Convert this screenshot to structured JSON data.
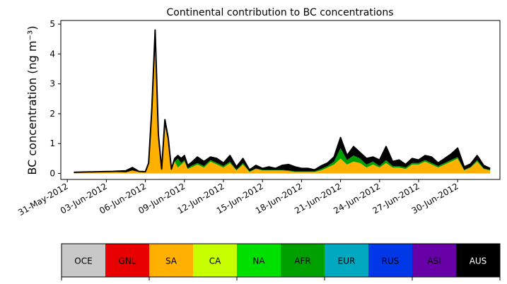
{
  "chart_data": {
    "type": "area",
    "title": "Continental contribution to BC concentrations",
    "xlabel": "",
    "ylabel": "BC concentration (ng m⁻³)",
    "ylim": [
      -0.2,
      5.12
    ],
    "xlim": [
      "2012-05-30T12:00",
      "2012-07-03T06:00"
    ],
    "grid": false,
    "stacked": true,
    "x_ticks": [
      "31-May-2012",
      "03-Jun-2012",
      "06-Jun-2012",
      "09-Jun-2012",
      "12-Jun-2012",
      "15-Jun-2012",
      "18-Jun-2012",
      "21-Jun-2012",
      "24-Jun-2012",
      "27-Jun-2012",
      "30-Jun-2012"
    ],
    "y_ticks": [
      0,
      1,
      2,
      3,
      4,
      5
    ],
    "x": [
      "2012-05-31T12:00",
      "2012-06-01T12:00",
      "2012-06-02T12:00",
      "2012-06-03T12:00",
      "2012-06-04T12:00",
      "2012-06-05T00:00",
      "2012-06-05T12:00",
      "2012-06-06T00:00",
      "2012-06-06T06:00",
      "2012-06-06T12:00",
      "2012-06-06T18:00",
      "2012-06-07T00:00",
      "2012-06-07T06:00",
      "2012-06-07T12:00",
      "2012-06-07T18:00",
      "2012-06-08T00:00",
      "2012-06-08T06:00",
      "2012-06-08T12:00",
      "2012-06-08T18:00",
      "2012-06-09T00:00",
      "2012-06-09T06:00",
      "2012-06-09T12:00",
      "2012-06-10T00:00",
      "2012-06-10T12:00",
      "2012-06-11T00:00",
      "2012-06-11T12:00",
      "2012-06-12T00:00",
      "2012-06-12T12:00",
      "2012-06-13T00:00",
      "2012-06-13T12:00",
      "2012-06-14T00:00",
      "2012-06-14T12:00",
      "2012-06-15T00:00",
      "2012-06-15T12:00",
      "2012-06-16T00:00",
      "2012-06-16T12:00",
      "2012-06-17T00:00",
      "2012-06-17T12:00",
      "2012-06-18T00:00",
      "2012-06-18T12:00",
      "2012-06-19T00:00",
      "2012-06-19T12:00",
      "2012-06-20T00:00",
      "2012-06-20T12:00",
      "2012-06-21T00:00",
      "2012-06-21T12:00",
      "2012-06-22T00:00",
      "2012-06-22T12:00",
      "2012-06-23T00:00",
      "2012-06-23T12:00",
      "2012-06-24T00:00",
      "2012-06-24T12:00",
      "2012-06-25T00:00",
      "2012-06-25T12:00",
      "2012-06-26T00:00",
      "2012-06-26T12:00",
      "2012-06-27T00:00",
      "2012-06-27T12:00",
      "2012-06-28T00:00",
      "2012-06-28T12:00",
      "2012-06-29T00:00",
      "2012-06-29T12:00",
      "2012-06-30T00:00",
      "2012-06-30T12:00",
      "2012-07-01T00:00",
      "2012-07-01T12:00",
      "2012-07-02T00:00",
      "2012-07-02T12:00"
    ],
    "series": [
      {
        "name": "SA",
        "color": "#ffb000",
        "values": [
          0.03,
          0.04,
          0.05,
          0.05,
          0.04,
          0.1,
          0.05,
          0.04,
          0.3,
          2.0,
          4.3,
          1.2,
          0.1,
          1.6,
          1.1,
          0.1,
          0.4,
          0.2,
          0.3,
          0.4,
          0.15,
          0.2,
          0.3,
          0.2,
          0.4,
          0.3,
          0.2,
          0.35,
          0.1,
          0.3,
          0.05,
          0.15,
          0.1,
          0.1,
          0.1,
          0.1,
          0.08,
          0.05,
          0.05,
          0.05,
          0.05,
          0.1,
          0.2,
          0.3,
          0.5,
          0.3,
          0.4,
          0.35,
          0.2,
          0.3,
          0.2,
          0.35,
          0.2,
          0.2,
          0.15,
          0.3,
          0.3,
          0.4,
          0.3,
          0.2,
          0.3,
          0.4,
          0.5,
          0.1,
          0.2,
          0.4,
          0.15,
          0.1
        ]
      },
      {
        "name": "AFR",
        "color": "#00a000",
        "values": [
          0,
          0,
          0,
          0,
          0,
          0,
          0,
          0,
          0,
          0,
          0,
          0,
          0,
          0,
          0,
          0,
          0,
          0.3,
          0.05,
          0.05,
          0.02,
          0.05,
          0.05,
          0.05,
          0.05,
          0.05,
          0.05,
          0.05,
          0.02,
          0.05,
          0.02,
          0.02,
          0.02,
          0.02,
          0.02,
          0.02,
          0.02,
          0.02,
          0.02,
          0.02,
          0.02,
          0.05,
          0.05,
          0.1,
          0.35,
          0.15,
          0.2,
          0.15,
          0.1,
          0.1,
          0.05,
          0.1,
          0.05,
          0.05,
          0.05,
          0.05,
          0.05,
          0.05,
          0.05,
          0.05,
          0.05,
          0.05,
          0.05,
          0.02,
          0.02,
          0.05,
          0.02,
          0.02
        ]
      },
      {
        "name": "AUS",
        "color": "#000000",
        "values": [
          0.01,
          0.01,
          0.01,
          0.02,
          0.05,
          0.1,
          0.02,
          0.02,
          0.05,
          0.2,
          0.5,
          0.1,
          0.05,
          0.2,
          0.1,
          0.05,
          0.1,
          0.1,
          0.15,
          0.15,
          0.1,
          0.1,
          0.2,
          0.15,
          0.1,
          0.15,
          0.1,
          0.2,
          0.1,
          0.15,
          0.05,
          0.1,
          0.05,
          0.1,
          0.05,
          0.15,
          0.2,
          0.15,
          0.1,
          0.1,
          0.05,
          0.1,
          0.1,
          0.15,
          0.35,
          0.15,
          0.3,
          0.2,
          0.2,
          0.15,
          0.2,
          0.45,
          0.15,
          0.2,
          0.1,
          0.15,
          0.1,
          0.15,
          0.2,
          0.1,
          0.15,
          0.2,
          0.3,
          0.1,
          0.1,
          0.15,
          0.1,
          0.05
        ]
      }
    ],
    "colorbar": [
      {
        "label": "OCE",
        "color": "#c8c8c8",
        "text_color": "#000000"
      },
      {
        "label": "GNL",
        "color": "#e80000",
        "text_color": "#000000"
      },
      {
        "label": "SA",
        "color": "#ffb000",
        "text_color": "#000000"
      },
      {
        "label": "CA",
        "color": "#c8ff00",
        "text_color": "#000000"
      },
      {
        "label": "NA",
        "color": "#00e000",
        "text_color": "#000000"
      },
      {
        "label": "AFR",
        "color": "#00a000",
        "text_color": "#000000"
      },
      {
        "label": "EUR",
        "color": "#00a8c0",
        "text_color": "#000000"
      },
      {
        "label": "RUS",
        "color": "#0038e8",
        "text_color": "#000000"
      },
      {
        "label": "ASI",
        "color": "#6800a8",
        "text_color": "#000000"
      },
      {
        "label": "AUS",
        "color": "#000000",
        "text_color": "#ffffff"
      }
    ]
  }
}
